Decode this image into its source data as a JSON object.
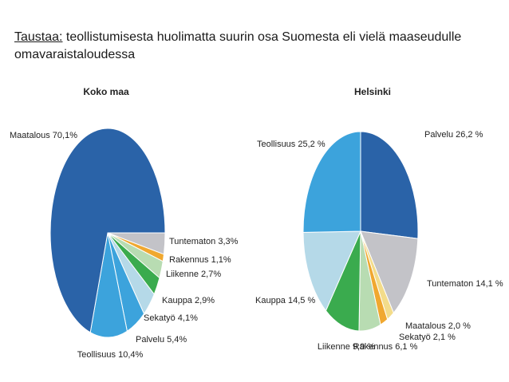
{
  "slide": {
    "heading_prefix": "Taustaa:",
    "heading_text": " teollistumisesta huolimatta suurin osa Suomesta eli vielä maaseudulle omavaraistaloudessa"
  },
  "colors": {
    "dark_blue": "#2a63a8",
    "mid_blue": "#3ca3dc",
    "light_blue": "#b5d9e8",
    "green": "#3aab4e",
    "light_green": "#b8dcb2",
    "orange": "#f0a830",
    "yellow": "#f3dc8a",
    "gray": "#c3c3c8"
  },
  "chart_data": [
    {
      "type": "pie",
      "title": "Koko maa",
      "slices": [
        {
          "label": "Tuntematon",
          "value_text": "3,3%",
          "value": 3.3,
          "color": "gray"
        },
        {
          "label": "Rakennus",
          "value_text": "1,1%",
          "value": 1.1,
          "color": "orange"
        },
        {
          "label": "Liikenne",
          "value_text": "2,7%",
          "value": 2.7,
          "color": "light_green"
        },
        {
          "label": "Kauppa",
          "value_text": "2,9%",
          "value": 2.9,
          "color": "green"
        },
        {
          "label": "Sekatyö",
          "value_text": "4,1%",
          "value": 4.1,
          "color": "light_blue"
        },
        {
          "label": "Palvelu",
          "value_text": "5,4%",
          "value": 5.4,
          "color": "mid_blue"
        },
        {
          "label": "Teollisuus",
          "value_text": "10,4%",
          "value": 10.4,
          "color": "mid_blue"
        },
        {
          "label": "Maatalous",
          "value_text": "70,1%",
          "value": 70.1,
          "color": "dark_blue"
        }
      ]
    },
    {
      "type": "pie",
      "title": "Helsinki",
      "slices": [
        {
          "label": "Palvelu",
          "value_text": "26,2 %",
          "value": 26.2,
          "color": "dark_blue"
        },
        {
          "label": "Tuntematon",
          "value_text": "14,1 %",
          "value": 14.1,
          "color": "gray"
        },
        {
          "label": "Maatalous",
          "value_text": "2,0 %",
          "value": 2.0,
          "color": "yellow"
        },
        {
          "label": "Sekatyö",
          "value_text": "2,1 %",
          "value": 2.1,
          "color": "orange"
        },
        {
          "label": "Rakennus",
          "value_text": "6,1 %",
          "value": 6.1,
          "color": "light_green"
        },
        {
          "label": "Liikenne",
          "value_text": "9,9 %",
          "value": 9.9,
          "color": "green"
        },
        {
          "label": "Kauppa",
          "value_text": "14,5 %",
          "value": 14.5,
          "color": "light_blue"
        },
        {
          "label": "Teollisuus",
          "value_text": "25,2 %",
          "value": 25.2,
          "color": "mid_blue"
        }
      ]
    }
  ]
}
